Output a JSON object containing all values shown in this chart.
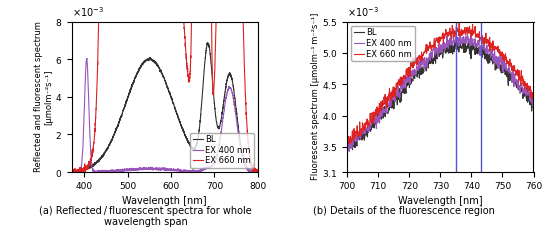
{
  "panel_a": {
    "title_a": "(a) Reflected / fluorescent spectra for whole\nwavelength span",
    "title_b": "(b) Details of the fluorescence region",
    "xlabel": "Wavelength [nm]",
    "ylabel_a": "Reflected and fluorescent spectrum\n[μmolm⁻²s⁻¹]",
    "ylabel_b": "Fluorescent spectrum [μmolm⁻¹ m⁻²s⁻¹]",
    "xlim_a": [
      370,
      800
    ],
    "ylim_a": [
      0,
      0.008
    ],
    "yticks_a": [
      0,
      0.002,
      0.004,
      0.006,
      0.008
    ],
    "xticks_a": [
      400,
      500,
      600,
      700,
      800
    ],
    "xlim_b": [
      700,
      760
    ],
    "ylim_b": [
      0.0031,
      0.0055
    ],
    "yticks_b": [
      0.0031,
      0.0035,
      0.004,
      0.0045,
      0.005,
      0.0055
    ],
    "ytick_labels_b": [
      "3.1",
      "3.5",
      "4",
      "4.5",
      "5",
      "5.5"
    ],
    "xticks_b": [
      700,
      710,
      720,
      730,
      740,
      750,
      760
    ],
    "vlines": [
      735,
      743
    ],
    "legend": [
      "BL",
      "EX 400 nm",
      "EX 660 nm"
    ],
    "color_BL": "#333333",
    "color_EX400": "#9955bb",
    "color_EX660": "#dd2222",
    "color_vline": "#5555cc",
    "figure_bg": "#ffffff"
  }
}
